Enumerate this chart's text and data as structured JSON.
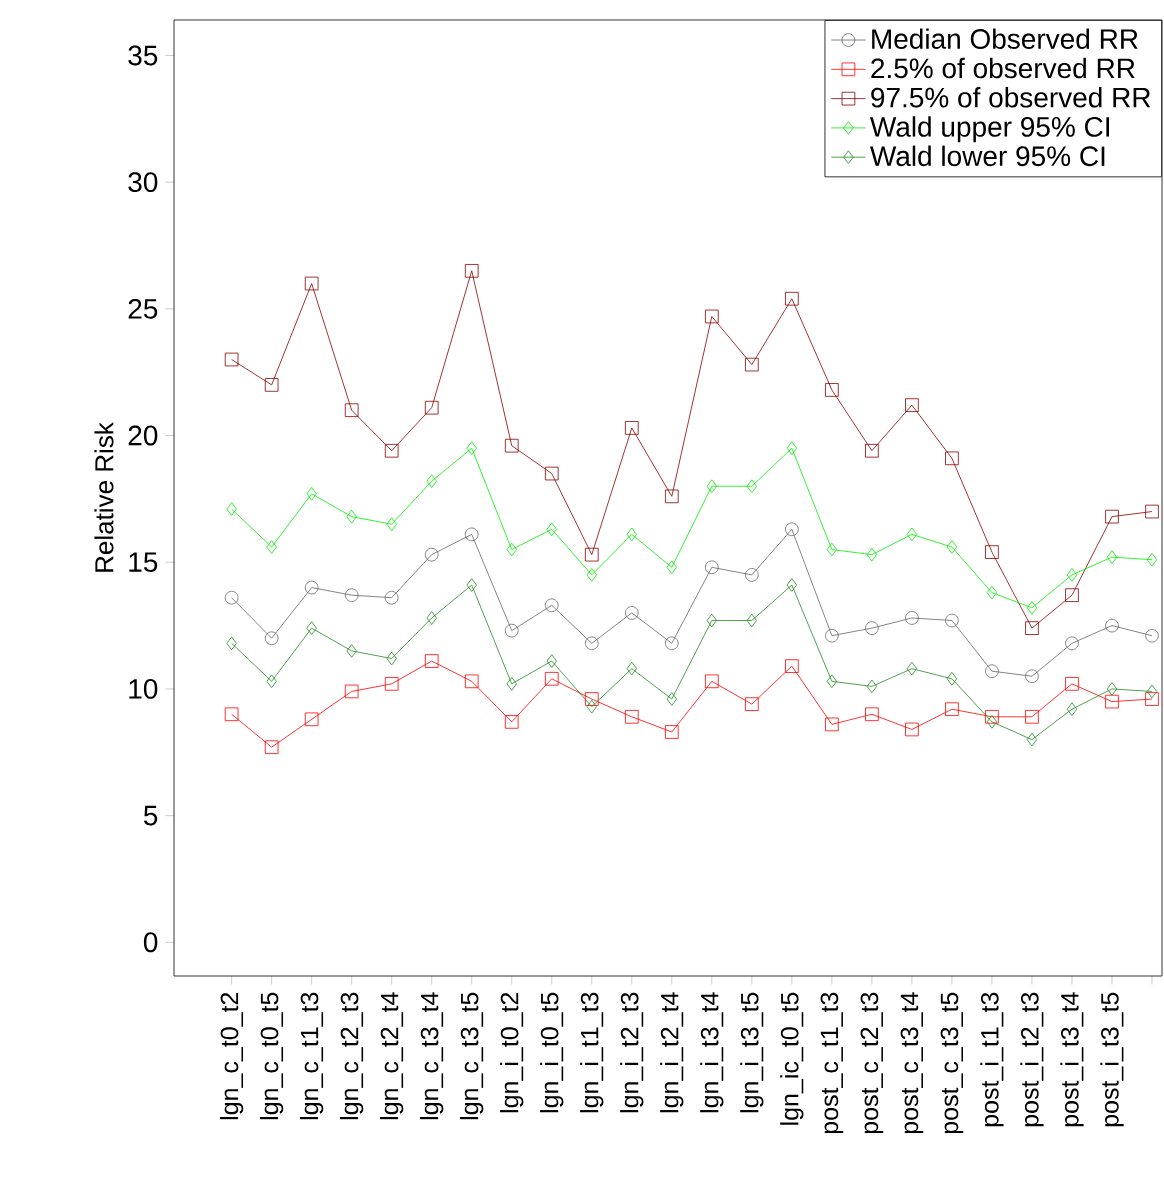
{
  "chart_data": {
    "type": "line",
    "ylabel": "Relative Risk",
    "categories": [
      "lgn_c_t0_t2",
      "lgn_c_t0_t5",
      "lgn_c_t1_t3",
      "lgn_c_t2_t3",
      "lgn_c_t2_t4",
      "lgn_c_t3_t4",
      "lgn_c_t3_t5",
      "lgn_i_t0_t2",
      "lgn_i_t0_t5",
      "lgn_i_t1_t3",
      "lgn_i_t2_t3",
      "lgn_i_t2_t4",
      "lgn_i_t3_t4",
      "lgn_i_t3_t5",
      "lgn_ic_t0_t5",
      "post_c_t1_t3",
      "post_c_t2_t3",
      "post_c_t3_t4",
      "post_c_t3_t5",
      "post_i_t1_t3",
      "post_i_t2_t3",
      "post_i_t3_t4",
      "post_i_t3_t5",
      null
    ],
    "series": [
      {
        "name": "Median Observed RR",
        "color": "#666666",
        "marker": "circle",
        "values": [
          13.6,
          12.0,
          14.0,
          13.7,
          13.6,
          15.3,
          16.1,
          12.3,
          13.3,
          11.8,
          13.0,
          11.8,
          14.8,
          14.5,
          16.3,
          12.1,
          12.4,
          12.8,
          12.7,
          10.7,
          10.5,
          11.8,
          12.5,
          12.1
        ]
      },
      {
        "name": "2.5% of observed RR",
        "color": "#ff0000",
        "marker": "square",
        "values": [
          9.0,
          7.7,
          8.8,
          9.9,
          10.2,
          11.1,
          10.3,
          8.7,
          10.4,
          9.6,
          8.9,
          8.3,
          10.3,
          9.4,
          10.9,
          8.6,
          9.0,
          8.4,
          9.2,
          8.9,
          8.9,
          10.2,
          9.5,
          9.6
        ]
      },
      {
        "name": "97.5% of observed RR",
        "color": "#8b0000",
        "marker": "square",
        "values": [
          23.0,
          22.0,
          26.0,
          21.0,
          19.4,
          21.1,
          26.5,
          19.6,
          18.5,
          15.3,
          20.3,
          17.6,
          24.7,
          22.8,
          25.4,
          21.8,
          19.4,
          21.2,
          19.1,
          15.4,
          12.4,
          13.7,
          16.8,
          17.0
        ]
      },
      {
        "name": "Wald upper 95% CI",
        "color": "#00ee00",
        "marker": "diamond",
        "values": [
          17.1,
          15.6,
          17.7,
          16.8,
          16.5,
          18.2,
          19.5,
          15.5,
          16.3,
          14.5,
          16.1,
          14.8,
          18.0,
          18.0,
          19.5,
          15.5,
          15.3,
          16.1,
          15.6,
          13.8,
          13.2,
          14.5,
          15.2,
          15.1
        ]
      },
      {
        "name": "Wald lower 95% CI",
        "color": "#228b22",
        "marker": "diamond",
        "values": [
          11.8,
          10.3,
          12.4,
          11.5,
          11.2,
          12.8,
          14.1,
          10.2,
          11.1,
          9.3,
          10.8,
          9.6,
          12.7,
          12.7,
          14.1,
          10.3,
          10.1,
          10.8,
          10.4,
          8.7,
          8.0,
          9.2,
          10.0,
          9.9
        ]
      }
    ],
    "ylim": [
      -1.33,
      36.4
    ],
    "yticks": [
      0,
      5,
      10,
      15,
      20,
      25,
      30,
      35
    ],
    "line_style": "solid",
    "legend": "top right"
  }
}
